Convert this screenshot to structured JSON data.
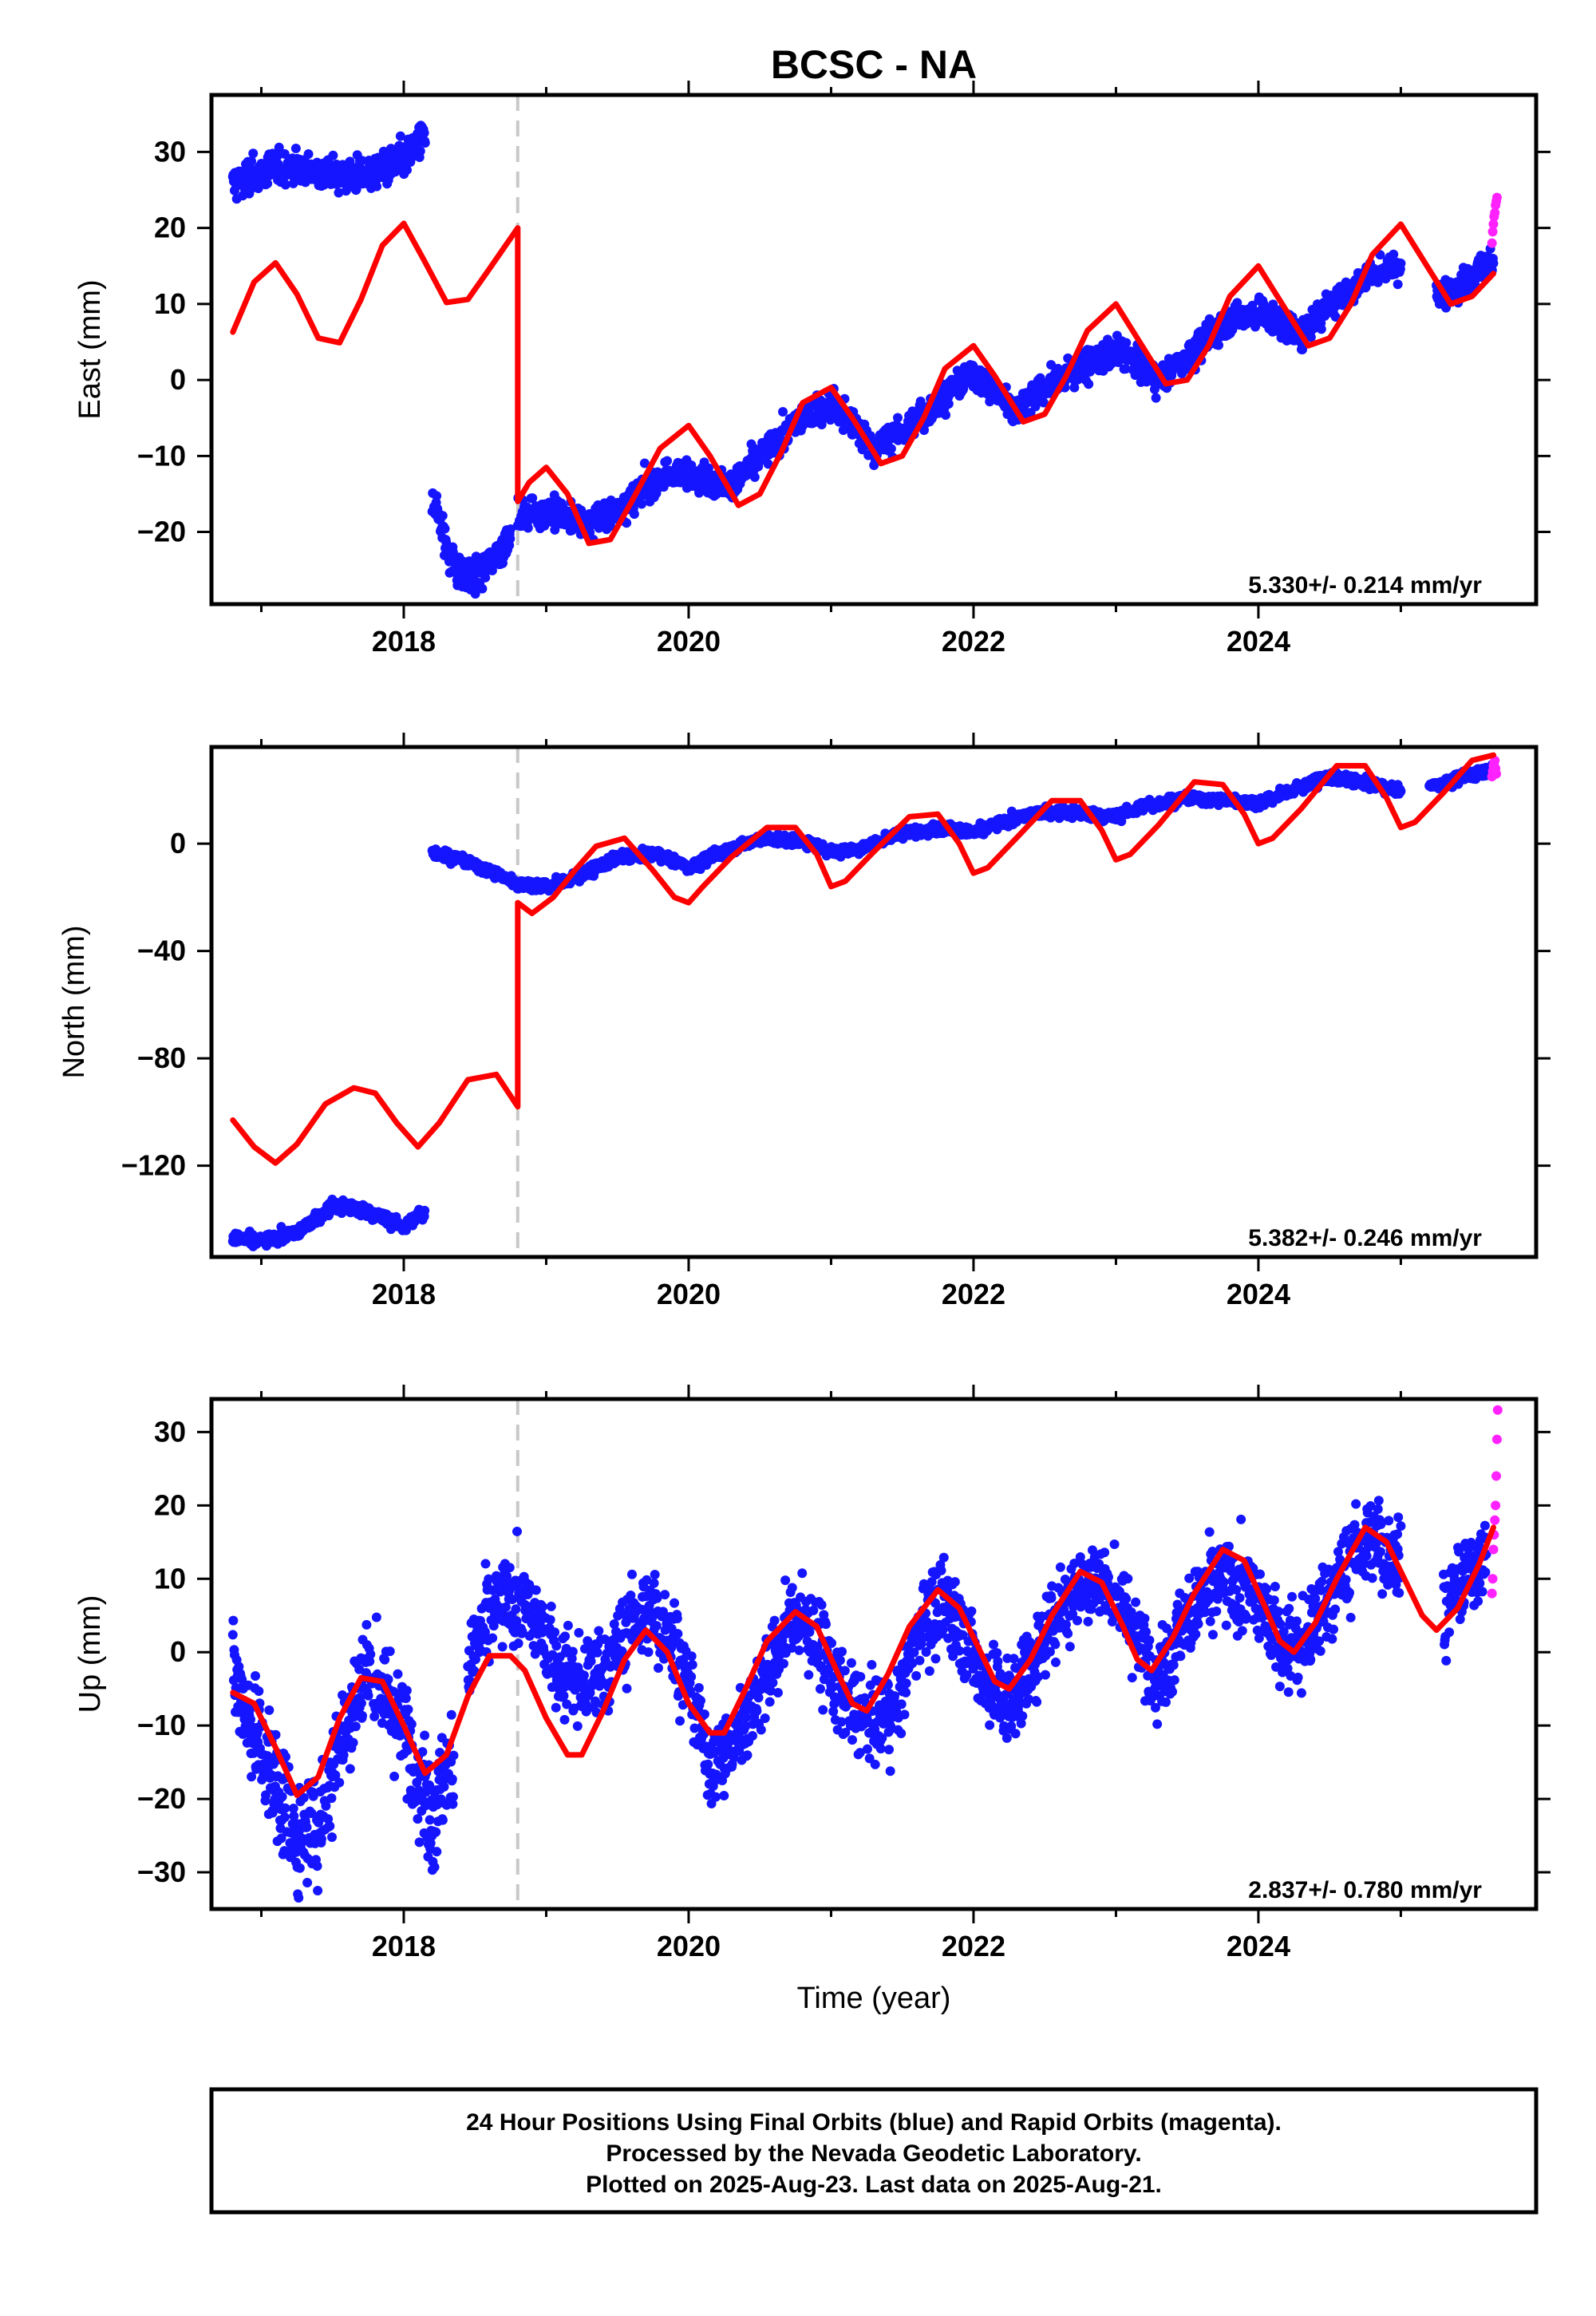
{
  "figure": {
    "title": "BCSC - NA",
    "xlabel": "Time (year)",
    "footer_lines": [
      "24 Hour Positions Using Final Orbits (blue) and Rapid Orbits (magenta).",
      "Processed by the Nevada Geodetic Laboratory.",
      "Plotted on 2025-Aug-23. Last data on 2025-Aug-21."
    ]
  },
  "colors": {
    "final_orbits": "#1515ff",
    "rapid_orbits": "#ff22ff",
    "model": "#ff0000",
    "event_line": "#c8c8c8",
    "frame": "#000000"
  },
  "chart_data": [
    {
      "type": "scatter",
      "panel": "east",
      "ylabel": "East (mm)",
      "rate_text": "5.330+/- 0.214 mm/yr",
      "xlim": [
        2016.65,
        2025.95
      ],
      "ylim": [
        -29.5,
        37.5
      ],
      "xticks": [
        2018,
        2020,
        2022,
        2024
      ],
      "yticks": [
        -20,
        -10,
        0,
        10,
        20,
        30
      ],
      "event_x": 2018.8,
      "series": [
        {
          "role": "final",
          "segments": [
            {
              "x": [
                2016.8,
                2017.0,
                2017.25,
                2017.5,
                2017.75,
                2018.0,
                2018.15
              ],
              "y": [
                26,
                27.5,
                28,
                27,
                27,
                29,
                32
              ],
              "noise": 1.6
            },
            {
              "x": [
                2018.2,
                2018.3,
                2018.4,
                2018.5,
                2018.6,
                2018.75
              ],
              "y": [
                -15,
                -22,
                -26,
                -26,
                -24,
                -21
              ],
              "noise": 1.6
            },
            {
              "x": [
                2018.8,
                2019.0,
                2019.3,
                2019.5,
                2019.8,
                2020.0,
                2020.3,
                2020.5,
                2020.8,
                2021.0,
                2021.3,
                2021.5,
                2021.8,
                2022.0,
                2022.3,
                2022.5,
                2022.8,
                2023.0,
                2023.3,
                2023.5,
                2023.8,
                2024.0,
                2024.3,
                2024.5,
                2024.8,
                2025.0
              ],
              "y": [
                -18,
                -17,
                -19,
                -17,
                -13,
                -12,
                -14,
                -10,
                -5,
                -3,
                -9,
                -7,
                -2,
                1,
                -4,
                -1,
                2,
                4,
                0,
                3,
                8,
                9,
                6,
                10,
                14,
                15
              ],
              "noise": 1.4
            },
            {
              "x": [
                2025.25,
                2025.45,
                2025.65
              ],
              "y": [
                11,
                13,
                16
              ],
              "noise": 1.4
            }
          ]
        },
        {
          "role": "rapid",
          "x": [
            2025.64,
            2025.645,
            2025.65,
            2025.655,
            2025.66,
            2025.665,
            2025.67,
            2025.675
          ],
          "y": [
            18,
            19.5,
            20.5,
            21.5,
            22,
            23,
            23.5,
            24
          ]
        },
        {
          "role": "model",
          "x": [
            2016.8,
            2016.95,
            2017.1,
            2017.25,
            2017.4,
            2017.55,
            2017.7,
            2017.85,
            2018.0,
            2018.15,
            2018.3,
            2018.45,
            2018.6,
            2018.8,
            2018.8,
            2018.88,
            2019.0,
            2019.15,
            2019.3,
            2019.45,
            2019.6,
            2019.8,
            2020.0,
            2020.15,
            2020.35,
            2020.5,
            2020.65,
            2020.8,
            2021.0,
            2021.15,
            2021.35,
            2021.5,
            2021.65,
            2021.8,
            2022.0,
            2022.15,
            2022.35,
            2022.5,
            2022.65,
            2022.8,
            2023.0,
            2023.15,
            2023.35,
            2023.5,
            2023.65,
            2023.8,
            2024.0,
            2024.15,
            2024.35,
            2024.5,
            2024.65,
            2024.8,
            2025.0,
            2025.15,
            2025.35,
            2025.5,
            2025.65
          ],
          "y": [
            6.3,
            12.9,
            15.4,
            11.3,
            5.5,
            4.9,
            10.6,
            17.7,
            20.6,
            15.5,
            10.2,
            10.6,
            14.6,
            20.0,
            -16.0,
            -13.5,
            -11.5,
            -15.0,
            -21.5,
            -21.0,
            -16.0,
            -9.0,
            -6.0,
            -10.0,
            -16.5,
            -15.0,
            -9.5,
            -3.0,
            -1.0,
            -5.0,
            -11.0,
            -10.0,
            -5.0,
            1.5,
            4.5,
            0.5,
            -5.5,
            -4.5,
            0.5,
            6.5,
            10.0,
            5.5,
            -0.5,
            0.0,
            4.5,
            11.0,
            15.0,
            10.5,
            4.5,
            5.5,
            10.0,
            16.5,
            20.5,
            16.0,
            10.0,
            11.0,
            14.0
          ]
        }
      ]
    },
    {
      "type": "scatter",
      "panel": "north",
      "ylabel": "North (mm)",
      "rate_text": "5.382+/- 0.246 mm/yr",
      "xlim": [
        2016.65,
        2025.95
      ],
      "ylim": [
        -154,
        36
      ],
      "xticks": [
        2018,
        2020,
        2022,
        2024
      ],
      "yticks": [
        -120,
        -80,
        -40,
        0
      ],
      "event_x": 2018.8,
      "series": [
        {
          "role": "final",
          "segments": [
            {
              "x": [
                2016.8,
                2017.0,
                2017.25,
                2017.5,
                2017.75,
                2018.0,
                2018.15
              ],
              "y": [
                -147,
                -148,
                -145,
                -135,
                -137,
                -143,
                -137
              ],
              "noise": 1.6
            },
            {
              "x": [
                2018.2,
                2018.4,
                2018.6,
                2018.8,
                2019.0,
                2019.2,
                2019.5,
                2019.8,
                2020.0,
                2020.2,
                2020.5,
                2020.8,
                2021.0,
                2021.2,
                2021.5,
                2021.8,
                2022.0,
                2022.2,
                2022.5,
                2022.8,
                2023.0,
                2023.2,
                2023.5,
                2023.8,
                2024.0,
                2024.2,
                2024.5,
                2024.8,
                2025.0
              ],
              "y": [
                -3,
                -6,
                -10,
                -15,
                -16,
                -13,
                -5,
                -4,
                -9,
                -4,
                2,
                1,
                -3,
                -2,
                4,
                6,
                4,
                8,
                12,
                11,
                10,
                14,
                17,
                16,
                15,
                19,
                25,
                22,
                20
              ],
              "noise": 1.4
            },
            {
              "x": [
                2025.2,
                2025.45,
                2025.65
              ],
              "y": [
                21,
                25,
                28
              ],
              "noise": 1.4
            }
          ]
        },
        {
          "role": "rapid",
          "x": [
            2025.64,
            2025.645,
            2025.65,
            2025.655,
            2025.66,
            2025.665,
            2025.67
          ],
          "y": [
            25,
            27,
            29,
            30,
            31,
            28,
            26
          ]
        },
        {
          "role": "model",
          "x": [
            2016.8,
            2016.95,
            2017.1,
            2017.25,
            2017.45,
            2017.65,
            2017.8,
            2017.95,
            2018.1,
            2018.25,
            2018.45,
            2018.65,
            2018.8,
            2018.8,
            2018.9,
            2019.05,
            2019.2,
            2019.35,
            2019.55,
            2019.75,
            2019.9,
            2020.0,
            2020.1,
            2020.3,
            2020.55,
            2020.75,
            2020.9,
            2021.0,
            2021.1,
            2021.3,
            2021.55,
            2021.75,
            2021.9,
            2022.0,
            2022.1,
            2022.3,
            2022.55,
            2022.75,
            2022.9,
            2023.0,
            2023.1,
            2023.3,
            2023.55,
            2023.75,
            2023.9,
            2024.0,
            2024.1,
            2024.3,
            2024.55,
            2024.75,
            2024.9,
            2025.0,
            2025.1,
            2025.3,
            2025.5,
            2025.65
          ],
          "y": [
            -103,
            -113,
            -119,
            -112,
            -97,
            -91,
            -93,
            -104,
            -113,
            -104,
            -88,
            -86,
            -98,
            -22,
            -26,
            -20,
            -10,
            -1,
            2,
            -10,
            -20,
            -22,
            -16,
            -5,
            6,
            6,
            -4,
            -16,
            -14,
            -3,
            10,
            11,
            0,
            -11,
            -9,
            2,
            16,
            16,
            5,
            -6,
            -4,
            7,
            23,
            22,
            11,
            0,
            2,
            13,
            29,
            29,
            17,
            6,
            8,
            19,
            31,
            33
          ]
        }
      ]
    },
    {
      "type": "scatter",
      "panel": "up",
      "ylabel": "Up (mm)",
      "rate_text": "2.837+/- 0.780 mm/yr",
      "xlim": [
        2016.65,
        2025.95
      ],
      "ylim": [
        -35,
        34.5
      ],
      "xticks": [
        2018,
        2020,
        2022,
        2024
      ],
      "yticks": [
        -30,
        -20,
        -10,
        0,
        10,
        20,
        30
      ],
      "event_x": 2018.8,
      "series": [
        {
          "role": "final",
          "segments": [
            {
              "x": [
                2016.8,
                2017.0,
                2017.25,
                2017.4,
                2017.55,
                2017.75,
                2018.0,
                2018.2,
                2018.35
              ],
              "y": [
                -3,
                -13,
                -25,
                -24,
                -12,
                -2,
                -10,
                -22,
                -14
              ],
              "noise": 5.5
            },
            {
              "x": [
                2018.45,
                2018.6,
                2018.75,
                2018.9,
                2019.1,
                2019.25,
                2019.45,
                2019.65,
                2019.85,
                2020.0,
                2020.15,
                2020.3,
                2020.5,
                2020.75,
                2020.9,
                2021.05,
                2021.25,
                2021.45,
                2021.65,
                2021.85,
                2022.05,
                2022.25,
                2022.4,
                2022.6,
                2022.8,
                2023.0,
                2023.2,
                2023.3,
                2023.5,
                2023.75,
                2023.95,
                2024.15,
                2024.3,
                2024.5,
                2024.75,
                2024.95,
                2025.0
              ],
              "y": [
                -2,
                5,
                8,
                5,
                -2,
                -5,
                -1,
                5,
                4,
                -5,
                -15,
                -13,
                -5,
                5,
                2,
                -5,
                -10,
                -8,
                5,
                6,
                -3,
                -7,
                -2,
                6,
                10,
                8,
                0,
                -3,
                5,
                10,
                8,
                2,
                0,
                8,
                15,
                14,
                12
              ],
              "noise": 4.2
            },
            {
              "x": [
                2025.3,
                2025.45,
                2025.6
              ],
              "y": [
                6,
                10,
                14
              ],
              "noise": 4.0
            }
          ]
        },
        {
          "role": "rapid",
          "x": [
            2025.64,
            2025.645,
            2025.65,
            2025.655,
            2025.66,
            2025.665,
            2025.67,
            2025.675,
            2025.68
          ],
          "y": [
            8,
            10,
            14,
            16,
            18,
            20,
            24,
            29,
            33
          ]
        },
        {
          "role": "model",
          "x": [
            2016.8,
            2016.95,
            2017.1,
            2017.25,
            2017.4,
            2017.55,
            2017.7,
            2017.85,
            2018.0,
            2018.15,
            2018.3,
            2018.45,
            2018.6,
            2018.75,
            2018.85,
            2019.0,
            2019.15,
            2019.25,
            2019.4,
            2019.55,
            2019.7,
            2019.85,
            2020.0,
            2020.15,
            2020.25,
            2020.4,
            2020.55,
            2020.75,
            2020.9,
            2021.05,
            2021.15,
            2021.25,
            2021.4,
            2021.55,
            2021.75,
            2021.9,
            2022.05,
            2022.15,
            2022.25,
            2022.4,
            2022.55,
            2022.75,
            2022.9,
            2023.05,
            2023.15,
            2023.25,
            2023.4,
            2023.55,
            2023.75,
            2023.9,
            2024.05,
            2024.15,
            2024.25,
            2024.4,
            2024.55,
            2024.75,
            2024.9,
            2025.05,
            2025.15,
            2025.25,
            2025.4,
            2025.55,
            2025.65
          ],
          "y": [
            -5.5,
            -7,
            -13,
            -19.5,
            -17,
            -9,
            -3.5,
            -4,
            -10,
            -16.5,
            -14,
            -6,
            -0.5,
            -0.5,
            -2.5,
            -9,
            -14,
            -14,
            -8,
            -1,
            3,
            0,
            -7,
            -11,
            -11,
            -5,
            1.5,
            5.5,
            3.5,
            -3,
            -7,
            -8,
            -3,
            3.5,
            8.5,
            6,
            0,
            -4,
            -5,
            -1,
            5,
            11,
            9.5,
            3.5,
            -1,
            -2.5,
            2,
            8,
            14,
            12.5,
            6,
            1.5,
            0,
            4,
            10,
            17,
            15,
            9,
            5,
            3,
            6,
            12,
            17
          ]
        }
      ]
    }
  ]
}
